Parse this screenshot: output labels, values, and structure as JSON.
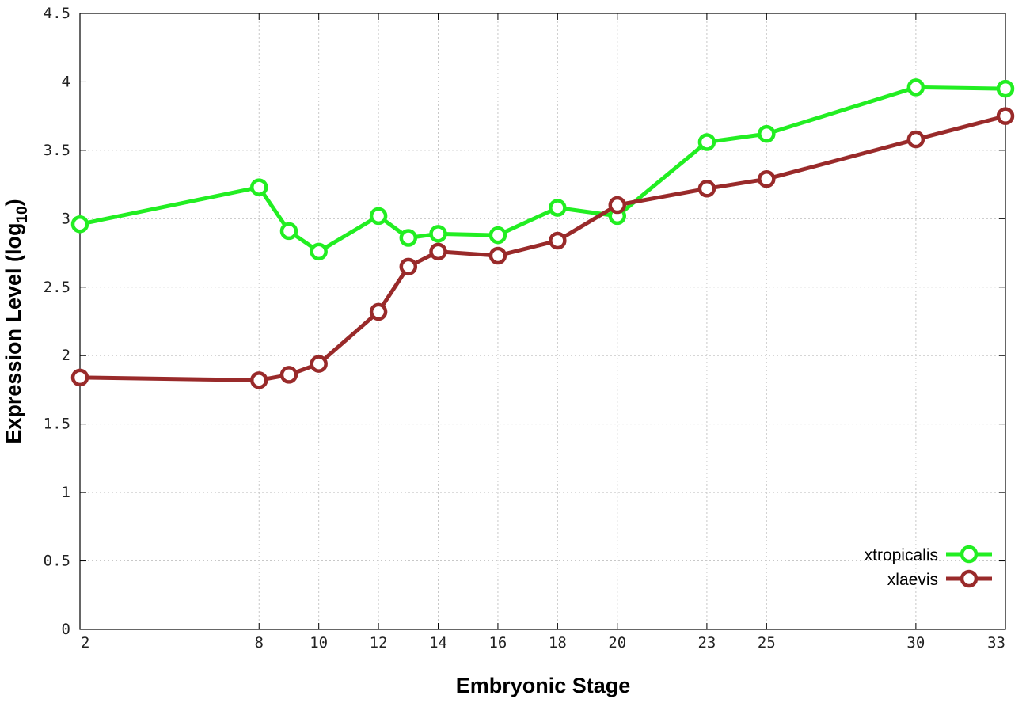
{
  "chart_data": {
    "type": "line",
    "xlabel": "Embryonic Stage",
    "ylabel_main": "Expression Level (log",
    "ylabel_sub": "10",
    "ylabel_close": ")",
    "xlim": [
      2,
      33
    ],
    "ylim": [
      0,
      4.5
    ],
    "xticks": [
      2,
      8,
      10,
      12,
      14,
      16,
      18,
      20,
      23,
      25,
      30,
      33
    ],
    "yticks": [
      {
        "value": 0,
        "label": "0"
      },
      {
        "value": 0.5,
        "label": "0.5"
      },
      {
        "value": 1,
        "label": "1"
      },
      {
        "value": 1.5,
        "label": "1.5"
      },
      {
        "value": 2,
        "label": "2"
      },
      {
        "value": 2.5,
        "label": "2.5"
      },
      {
        "value": 3,
        "label": "3"
      },
      {
        "value": 3.5,
        "label": "3.5"
      },
      {
        "value": 4,
        "label": "4"
      },
      {
        "value": 4.5,
        "label": "4.5"
      }
    ],
    "grid": true,
    "legend_position": "bottom-right",
    "x": [
      2,
      8,
      9,
      10,
      12,
      13,
      14,
      16,
      18,
      20,
      23,
      25,
      30,
      33
    ],
    "series": [
      {
        "name": "xtropicalis",
        "color": "#22ee22",
        "values": [
          2.96,
          3.23,
          2.91,
          2.76,
          3.02,
          2.86,
          2.89,
          2.88,
          3.08,
          3.02,
          3.56,
          3.62,
          3.96,
          3.95
        ]
      },
      {
        "name": "xlaevis",
        "color": "#992a2a",
        "values": [
          1.84,
          1.82,
          1.86,
          1.94,
          2.32,
          2.65,
          2.76,
          2.73,
          2.84,
          3.1,
          3.22,
          3.29,
          3.58,
          3.75
        ]
      }
    ]
  }
}
